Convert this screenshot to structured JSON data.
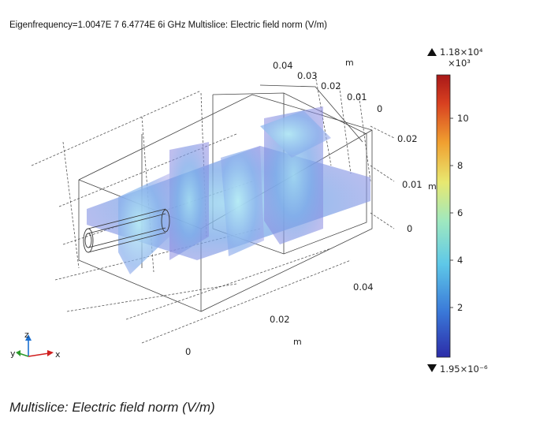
{
  "header": {
    "title": "Eigenfrequency=1.0047E 7 6.4774E 6i GHz  Multislice: Electric field norm (V/m)"
  },
  "caption": "Multislice: Electric field norm (V/m)",
  "axes": {
    "top_ticks": [
      "0.04",
      "0.03",
      "0.02",
      "0.01",
      "0"
    ],
    "top_unit": "m",
    "right_ticks": [
      "0.02",
      "0.01",
      "0"
    ],
    "right_unit": "m",
    "front_ticks": [
      "0.04"
    ],
    "bottom_ticks": [
      "0.02",
      "0"
    ],
    "bottom_unit": "m"
  },
  "colorbar": {
    "max_label": "1.18×10⁴",
    "multiplier": "×10³",
    "ticks": [
      "10",
      "8",
      "6",
      "4",
      "2"
    ],
    "min_label": "1.95×10⁻⁶",
    "colors": [
      "#2c2ca8",
      "#3a78d8",
      "#5ec8e8",
      "#9ee8c0",
      "#e8e870",
      "#f0a030",
      "#d84020",
      "#a81818"
    ]
  },
  "triad": {
    "z": "z",
    "y": "y",
    "x": "x",
    "colors": {
      "z": "#1a6fd0",
      "y": "#2a9a2a",
      "x": "#d02020"
    }
  }
}
